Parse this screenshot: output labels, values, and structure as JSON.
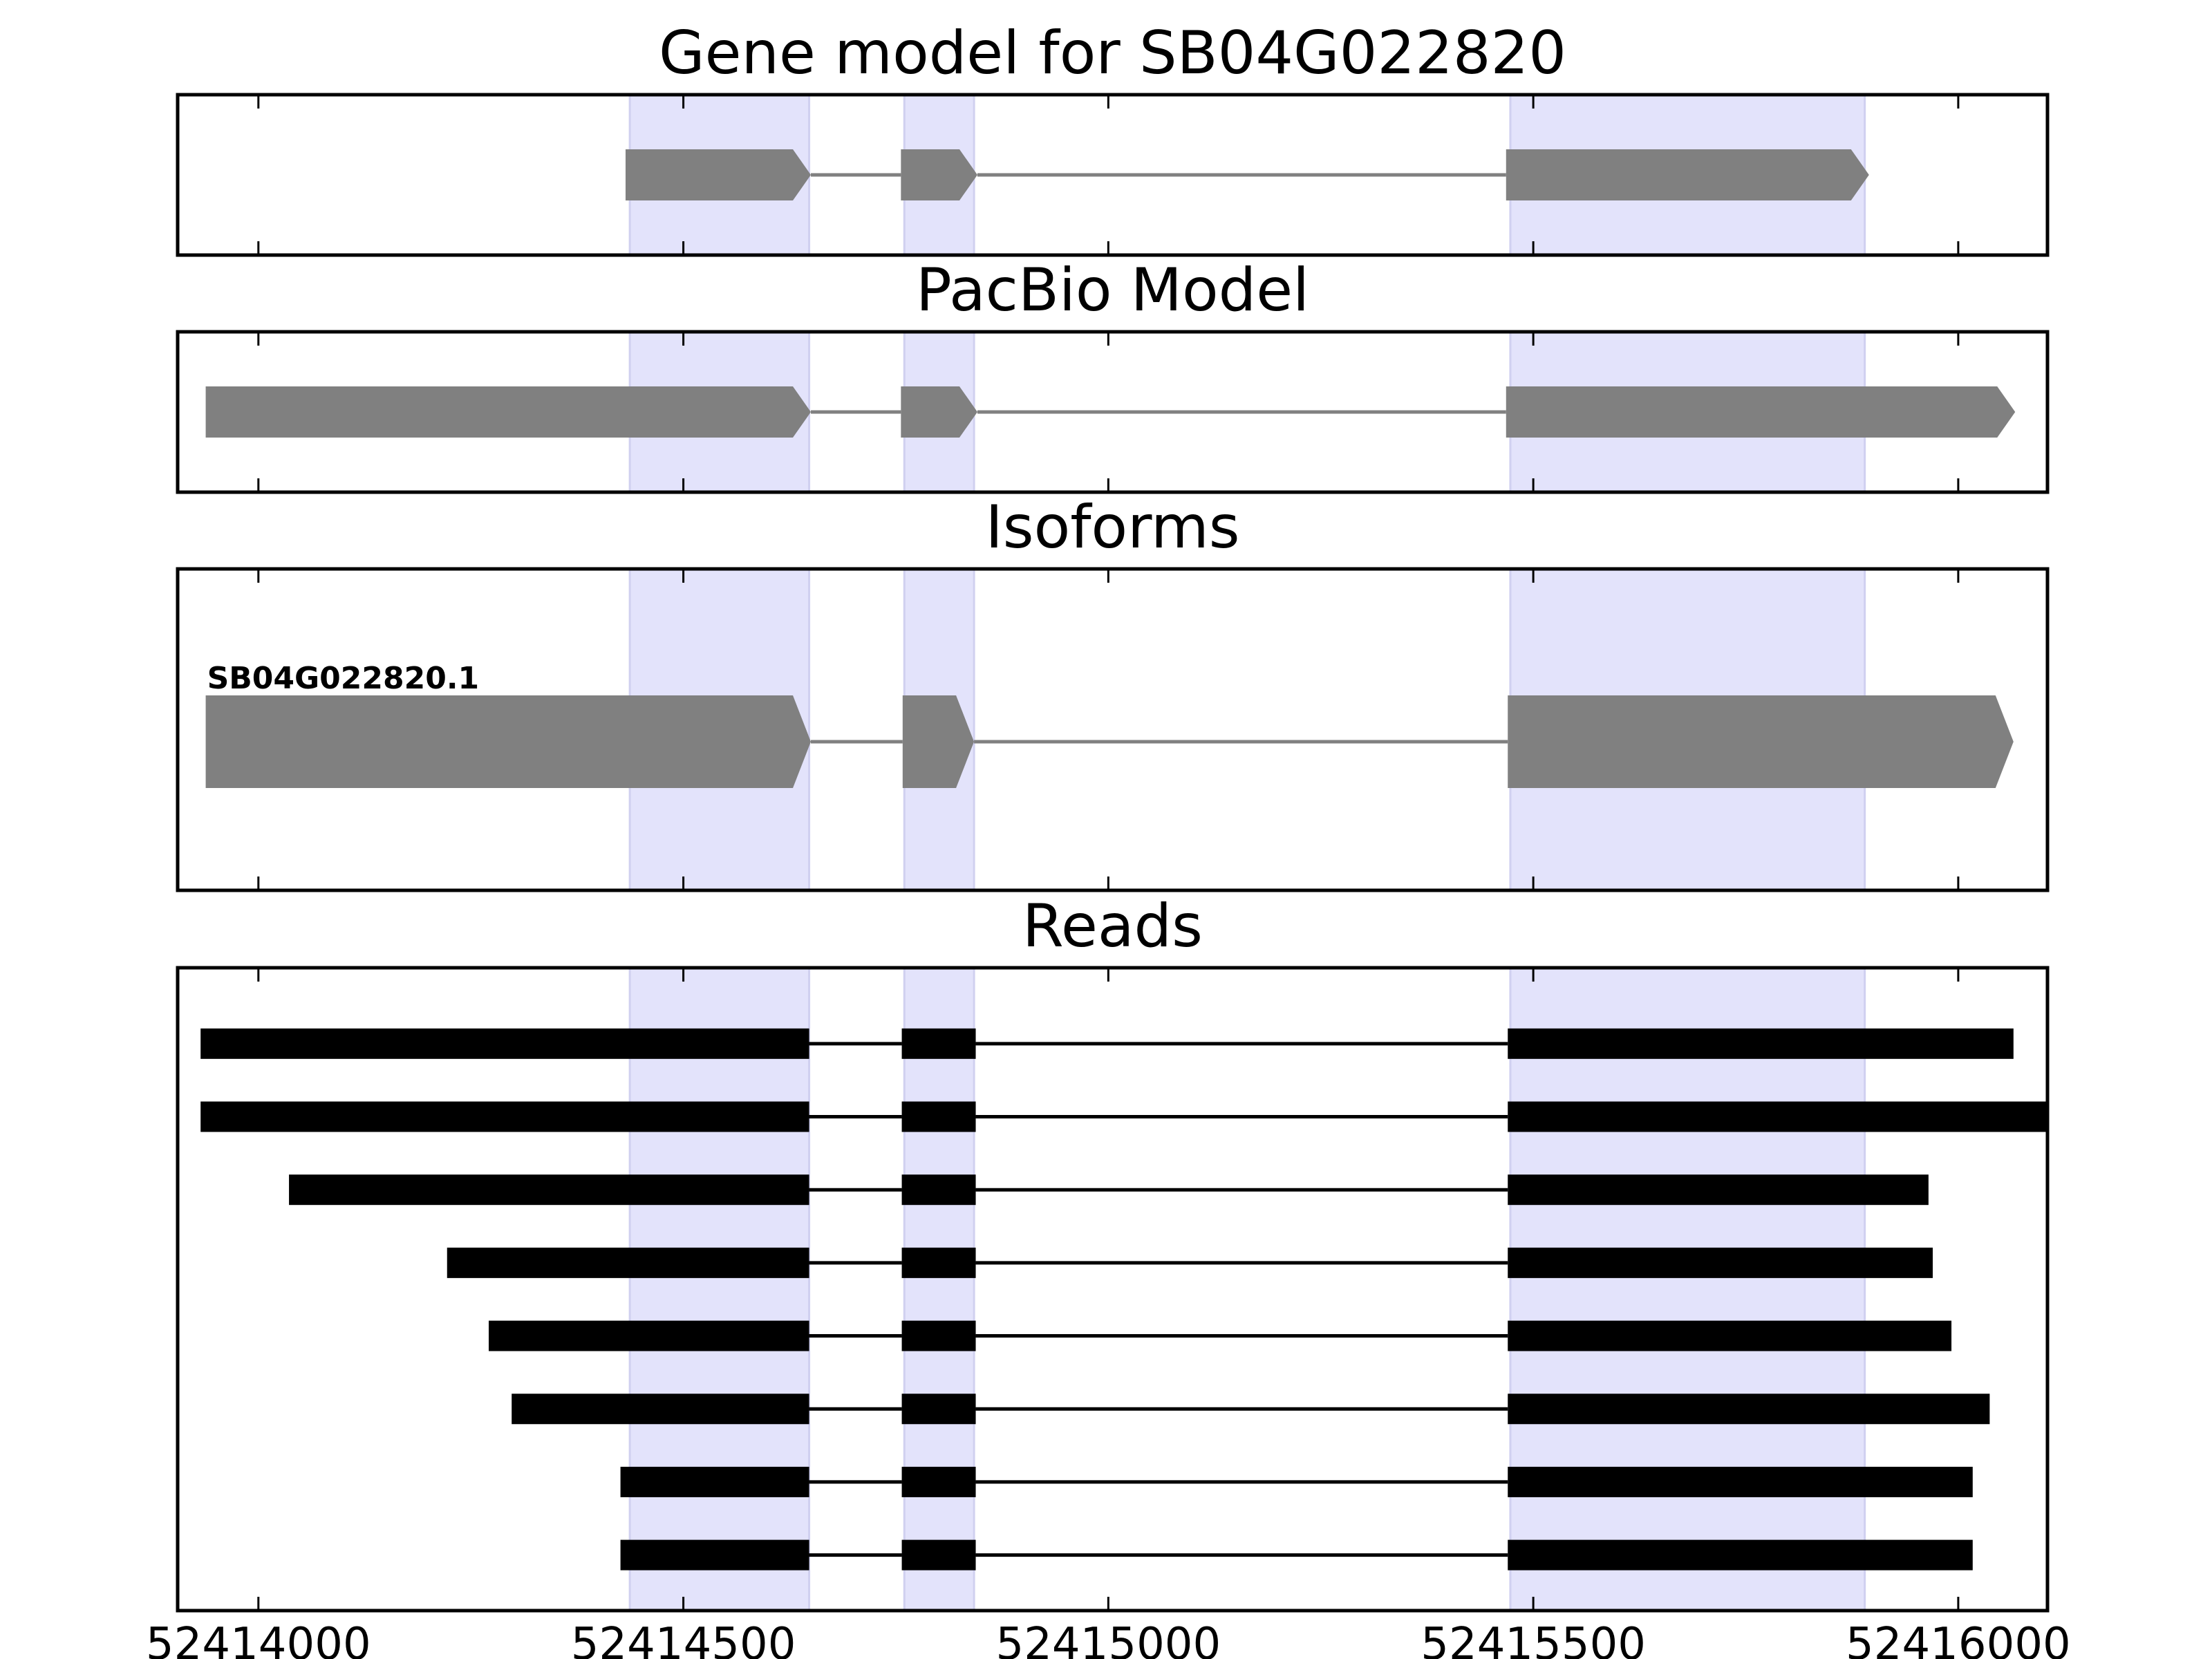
{
  "chart_data": {
    "type": "gene-track",
    "xlim": [
      52413905,
      52416105
    ],
    "xticks": [
      52414000,
      52414500,
      52415000,
      52415500,
      52416000
    ],
    "xtick_labels": [
      "52414000",
      "52414500",
      "52415000",
      "52415500",
      "52416000"
    ],
    "highlight_regions": [
      [
        52414437,
        52414648
      ],
      [
        52414760,
        52414842
      ],
      [
        52415473,
        52415890
      ]
    ],
    "colors": {
      "highlight": "#e3e3fb",
      "model_block": "#808080",
      "model_line": "#808080",
      "read_block": "#000000",
      "read_line": "#000000",
      "frame": "#000000"
    },
    "panels": [
      {
        "id": "gene-model",
        "title": "Gene model for SB04G022820",
        "kind": "model",
        "transcripts": [
          {
            "label": "",
            "exons": [
              [
                52414432,
                52414650
              ],
              [
                52414756,
                52414846
              ],
              [
                52415468,
                52415895
              ]
            ]
          }
        ]
      },
      {
        "id": "pacbio-model",
        "title": "PacBio Model",
        "kind": "model",
        "transcripts": [
          {
            "label": "",
            "exons": [
              [
                52413938,
                52414650
              ],
              [
                52414756,
                52414846
              ],
              [
                52415468,
                52416067
              ]
            ]
          }
        ]
      },
      {
        "id": "isoforms",
        "title": "Isoforms",
        "kind": "model",
        "transcripts": [
          {
            "label": "SB04G022820.1",
            "exons": [
              [
                52413938,
                52414650
              ],
              [
                52414758,
                52414842
              ],
              [
                52415470,
                52416065
              ]
            ]
          }
        ]
      },
      {
        "id": "reads",
        "title": "Reads",
        "kind": "reads",
        "transcripts": [
          {
            "exons": [
              [
                52413932,
                52414648
              ],
              [
                52414757,
                52414844
              ],
              [
                52415470,
                52416065
              ]
            ]
          },
          {
            "exons": [
              [
                52413932,
                52414648
              ],
              [
                52414757,
                52414844
              ],
              [
                52415470,
                52416105
              ]
            ]
          },
          {
            "exons": [
              [
                52414036,
                52414648
              ],
              [
                52414757,
                52414844
              ],
              [
                52415470,
                52415965
              ]
            ]
          },
          {
            "exons": [
              [
                52414222,
                52414648
              ],
              [
                52414757,
                52414844
              ],
              [
                52415470,
                52415970
              ]
            ]
          },
          {
            "exons": [
              [
                52414271,
                52414648
              ],
              [
                52414757,
                52414844
              ],
              [
                52415470,
                52415992
              ]
            ]
          },
          {
            "exons": [
              [
                52414298,
                52414648
              ],
              [
                52414757,
                52414844
              ],
              [
                52415470,
                52416037
              ]
            ]
          },
          {
            "exons": [
              [
                52414426,
                52414648
              ],
              [
                52414757,
                52414844
              ],
              [
                52415470,
                52416017
              ]
            ]
          },
          {
            "exons": [
              [
                52414426,
                52414648
              ],
              [
                52414757,
                52414844
              ],
              [
                52415470,
                52416017
              ]
            ]
          }
        ]
      }
    ]
  }
}
